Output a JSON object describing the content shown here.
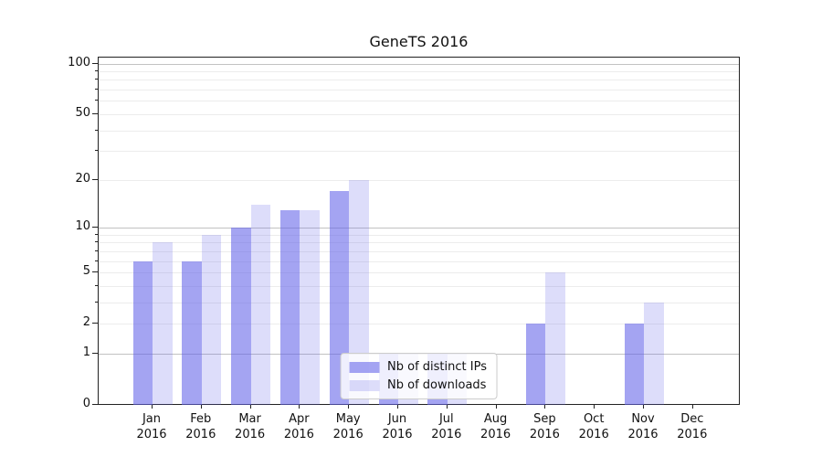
{
  "figure": {
    "title": "GeneTS 2016"
  },
  "chart_data": {
    "type": "bar",
    "title": "GeneTS 2016",
    "categories": [
      "Jan 2016",
      "Feb 2016",
      "Mar 2016",
      "Apr 2016",
      "May 2016",
      "Jun 2016",
      "Jul 2016",
      "Aug 2016",
      "Sep 2016",
      "Oct 2016",
      "Nov 2016",
      "Dec 2016"
    ],
    "series": [
      {
        "name": "Nb of distinct IPs",
        "color": "rgba(99,99,233,0.58)",
        "values": [
          6,
          6,
          10,
          13,
          17,
          1,
          1,
          0,
          2,
          0,
          2,
          0
        ]
      },
      {
        "name": "Nb of downloads",
        "color": "rgba(99,99,233,0.22)",
        "values": [
          8,
          9,
          14,
          13,
          20,
          1,
          1,
          0,
          5,
          0,
          3,
          0
        ]
      }
    ],
    "xlabel": "",
    "ylabel": "",
    "yscale": "symlog (position proportional to ln(1+v))",
    "ylim": [
      0,
      110
    ],
    "yticks": [
      0,
      1,
      2,
      5,
      10,
      20,
      50,
      100
    ],
    "major_gridlines": [
      1,
      10,
      100
    ],
    "minor_gridlines": [
      2,
      3,
      4,
      5,
      6,
      7,
      8,
      9,
      20,
      30,
      40,
      50,
      60,
      70,
      80,
      90
    ],
    "grid": "horizontal",
    "legend_position": "lower center",
    "colors": {
      "major_grid": "#c2c2c2",
      "minor_grid": "#ececec",
      "spine": "#222222"
    }
  }
}
